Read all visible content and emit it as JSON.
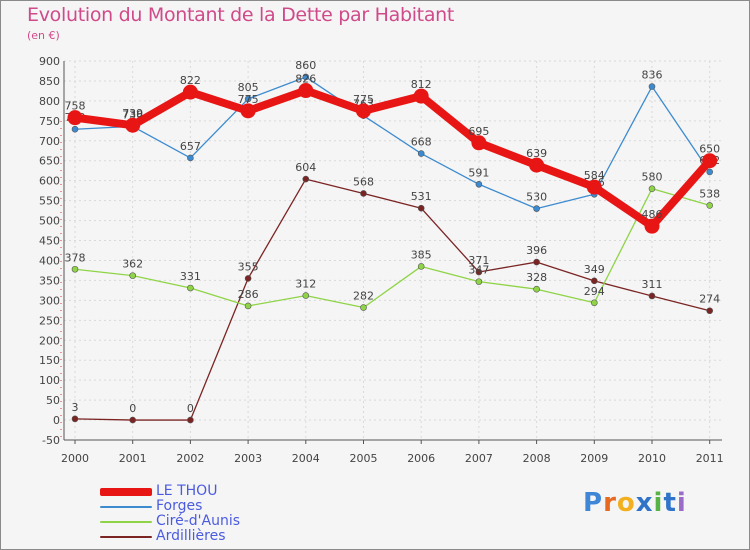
{
  "header": {
    "title": "Evolution du Montant de la Dette par Habitant",
    "unit": "(en €)"
  },
  "logo": {
    "text": "Proxiti",
    "colors": [
      "#3f86d6",
      "#e66a1f",
      "#f2b01e",
      "#2f74c9",
      "#58b347",
      "#2f74c9",
      "#9a6cc8"
    ]
  },
  "chart_data": {
    "type": "line",
    "title": "Evolution du Montant de la Dette par Habitant",
    "ylabel": "(en €)",
    "xlabel": "",
    "x": [
      "2000",
      "2001",
      "2002",
      "2003",
      "2004",
      "2005",
      "2006",
      "2007",
      "2008",
      "2009",
      "2010",
      "2011"
    ],
    "ylim": [
      -50,
      900
    ],
    "yticks": [
      -50,
      0,
      50,
      100,
      150,
      200,
      250,
      300,
      350,
      400,
      450,
      500,
      550,
      600,
      650,
      700,
      750,
      800,
      850,
      900
    ],
    "grid": true,
    "legend_position": "bottom-left",
    "series": [
      {
        "name": "LE THOU",
        "color": "#e81515",
        "values": [
          758,
          739,
          822,
          775,
          826,
          775,
          812,
          695,
          639,
          584,
          486,
          650
        ]
      },
      {
        "name": "Forges",
        "color": "#3c8bd0",
        "values": [
          729,
          736,
          657,
          805,
          860,
          763,
          668,
          591,
          530,
          566,
          836,
          622
        ]
      },
      {
        "name": "Ciré-d'Aunis",
        "color": "#8fd447",
        "values": [
          378,
          362,
          331,
          286,
          312,
          282,
          385,
          347,
          328,
          294,
          580,
          538
        ]
      },
      {
        "name": "Ardillières",
        "color": "#7b2424",
        "values": [
          3,
          0,
          0,
          355,
          604,
          568,
          531,
          371,
          396,
          349,
          311,
          274
        ]
      }
    ]
  }
}
